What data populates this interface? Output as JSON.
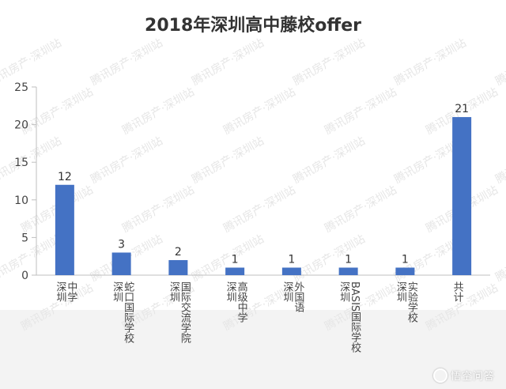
{
  "chart_data": {
    "type": "bar",
    "title": "2018年深圳高中藤校offer",
    "categories": [
      "深圳中学",
      "深圳蛇口国际学校",
      "深圳国际交流学院",
      "深圳高级中学",
      "深圳外国语",
      "深圳BASIS国际学校",
      "深圳实验学校",
      "共计"
    ],
    "values": [
      12,
      3,
      2,
      1,
      1,
      1,
      1,
      21
    ],
    "data_labels": [
      "12",
      "3",
      "2",
      "1",
      "1",
      "1",
      "1",
      "21"
    ],
    "yticks": [
      "0",
      "5",
      "10",
      "15",
      "20",
      "25"
    ],
    "ylim": [
      0,
      25
    ],
    "grid": false,
    "bar_color": "#4472c4"
  },
  "watermark": "腾讯房产·深圳站",
  "brand": "悟空问答"
}
